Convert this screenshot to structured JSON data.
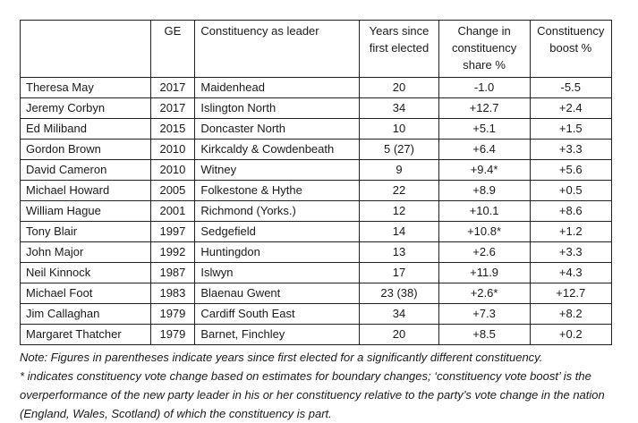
{
  "table": {
    "headers": {
      "name": "",
      "ge": "GE",
      "constituency": "Constituency as leader",
      "years": "Years since first elected",
      "change": "Change in constituency share %",
      "boost": "Constituency boost %"
    },
    "rows": [
      {
        "name": "Theresa May",
        "ge": "2017",
        "constituency": "Maidenhead",
        "years": "20",
        "change": "-1.0",
        "boost": "-5.5"
      },
      {
        "name": "Jeremy Corbyn",
        "ge": "2017",
        "constituency": "Islington North",
        "years": "34",
        "change": "+12.7",
        "boost": "+2.4"
      },
      {
        "name": "Ed Miliband",
        "ge": "2015",
        "constituency": "Doncaster North",
        "years": "10",
        "change": "+5.1",
        "boost": "+1.5"
      },
      {
        "name": "Gordon Brown",
        "ge": "2010",
        "constituency": "Kirkcaldy & Cowdenbeath",
        "years": "5 (27)",
        "change": "+6.4",
        "boost": "+3.3"
      },
      {
        "name": "David Cameron",
        "ge": "2010",
        "constituency": "Witney",
        "years": "9",
        "change": "+9.4*",
        "boost": "+5.6"
      },
      {
        "name": "Michael Howard",
        "ge": "2005",
        "constituency": "Folkestone & Hythe",
        "years": "22",
        "change": "+8.9",
        "boost": "+0.5"
      },
      {
        "name": "William Hague",
        "ge": "2001",
        "constituency": "Richmond (Yorks.)",
        "years": "12",
        "change": "+10.1",
        "boost": "+8.6"
      },
      {
        "name": "Tony Blair",
        "ge": "1997",
        "constituency": "Sedgefield",
        "years": "14",
        "change": "+10.8*",
        "boost": "+1.2"
      },
      {
        "name": "John Major",
        "ge": "1992",
        "constituency": "Huntingdon",
        "years": "13",
        "change": "+2.6",
        "boost": "+3.3"
      },
      {
        "name": "Neil Kinnock",
        "ge": "1987",
        "constituency": "Islwyn",
        "years": "17",
        "change": "+11.9",
        "boost": "+4.3"
      },
      {
        "name": "Michael Foot",
        "ge": "1983",
        "constituency": "Blaenau Gwent",
        "years": "23 (38)",
        "change": "+2.6*",
        "boost": "+12.7"
      },
      {
        "name": "Jim Callaghan",
        "ge": "1979",
        "constituency": "Cardiff South East",
        "years": "34",
        "change": "+7.3",
        "boost": "+8.2"
      },
      {
        "name": "Margaret Thatcher",
        "ge": "1979",
        "constituency": "Barnet, Finchley",
        "years": "20",
        "change": "+8.5",
        "boost": "+0.2"
      }
    ]
  },
  "note": {
    "line1": "Note: Figures in parentheses indicate years since first elected for a significantly different constituency.",
    "line2": "* indicates constituency vote change based on estimates for boundary changes; ‘constituency vote boost’ is the overperformance of the new party leader in his or her constituency relative to the party’s vote change in the nation (England, Wales, Scotland) of which the constituency is part."
  }
}
